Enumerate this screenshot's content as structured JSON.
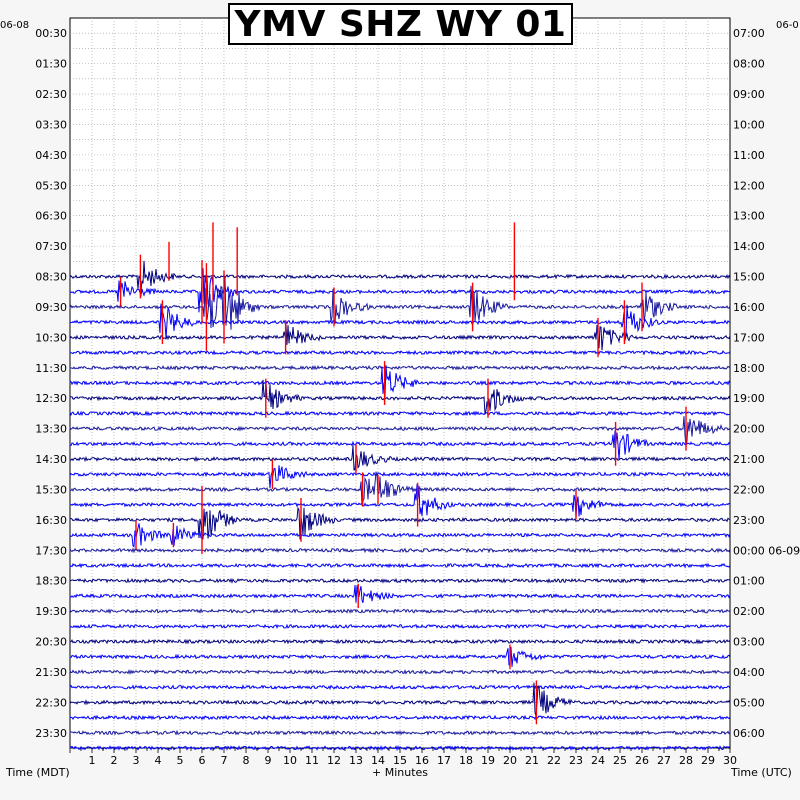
{
  "title": "YMV SHZ WY 01",
  "date_left": "06-08",
  "date_right": "06-0",
  "x_axis_label": "+ Minutes",
  "left_axis_label": "Time (MDT)",
  "right_axis_label": "Time (UTC)",
  "colors": {
    "trace_a": "#000080",
    "trace_b": "#0000ff",
    "trace_c": "#1a1aa0",
    "event": "#ff0000",
    "grid": "#9a9a9a"
  },
  "chart_data": {
    "type": "line",
    "title": "YMV SHZ WY 01",
    "xlabel": "+ Minutes",
    "xlim": [
      0,
      30
    ],
    "x_ticks": [
      "1",
      "2",
      "3",
      "4",
      "5",
      "6",
      "7",
      "8",
      "9",
      "10",
      "11",
      "12",
      "13",
      "14",
      "15",
      "16",
      "17",
      "18",
      "19",
      "20",
      "21",
      "22",
      "23",
      "24",
      "25",
      "26",
      "27",
      "28",
      "29",
      "30"
    ],
    "left_labels": [
      "00:30",
      "01:30",
      "02:30",
      "03:30",
      "04:30",
      "05:30",
      "06:30",
      "07:30",
      "08:30",
      "09:30",
      "10:30",
      "11:30",
      "12:30",
      "13:30",
      "14:30",
      "15:30",
      "16:30",
      "17:30",
      "18:30",
      "19:30",
      "20:30",
      "21:30",
      "22:30",
      "23:30"
    ],
    "right_labels": [
      "07:00",
      "08:00",
      "09:00",
      "10:00",
      "11:00",
      "12:00",
      "13:00",
      "14:00",
      "15:00",
      "16:00",
      "17:00",
      "18:00",
      "19:00",
      "20:00",
      "21:00",
      "22:00",
      "23:00",
      "00:00 06-09",
      "01:00",
      "02:00",
      "03:00",
      "04:00",
      "05:00",
      "06:00"
    ],
    "rows_per_hour": 2,
    "trace_start_hour": 8.5,
    "events": [
      {
        "hour": 8.5,
        "minute": 4.5,
        "amplitude": 0.8
      },
      {
        "hour": 8.5,
        "minute": 6.5,
        "amplitude": 1.6
      },
      {
        "hour": 8.5,
        "minute": 7.6,
        "amplitude": 1.4
      },
      {
        "hour": 8.5,
        "minute": 20.2,
        "amplitude": 1.6
      },
      {
        "hour": 9.0,
        "minute": 3.2,
        "amplitude": 0.9
      },
      {
        "hour": 9.5,
        "minute": 2.3,
        "amplitude": 0.6
      },
      {
        "hour": 9.5,
        "minute": 6.0,
        "amplitude": 1.3
      },
      {
        "hour": 10.0,
        "minute": 6.2,
        "amplitude": 1.8
      },
      {
        "hour": 10.0,
        "minute": 7.0,
        "amplitude": 1.5
      },
      {
        "hour": 10.0,
        "minute": 12.0,
        "amplitude": 0.8
      },
      {
        "hour": 10.0,
        "minute": 18.3,
        "amplitude": 1.0
      },
      {
        "hour": 10.0,
        "minute": 26.0,
        "amplitude": 1.0
      },
      {
        "hour": 10.5,
        "minute": 4.2,
        "amplitude": 0.9
      },
      {
        "hour": 10.5,
        "minute": 25.2,
        "amplitude": 0.9
      },
      {
        "hour": 11.0,
        "minute": 9.8,
        "amplitude": 0.7
      },
      {
        "hour": 11.0,
        "minute": 24.0,
        "amplitude": 0.8
      },
      {
        "hour": 12.5,
        "minute": 14.3,
        "amplitude": 0.9
      },
      {
        "hour": 13.0,
        "minute": 8.9,
        "amplitude": 0.8
      },
      {
        "hour": 13.0,
        "minute": 19.0,
        "amplitude": 0.8
      },
      {
        "hour": 14.0,
        "minute": 28.0,
        "amplitude": 0.9
      },
      {
        "hour": 14.5,
        "minute": 24.8,
        "amplitude": 0.9
      },
      {
        "hour": 15.0,
        "minute": 13.0,
        "amplitude": 0.6
      },
      {
        "hour": 15.5,
        "minute": 9.2,
        "amplitude": 0.6
      },
      {
        "hour": 16.0,
        "minute": 13.3,
        "amplitude": 0.7
      },
      {
        "hour": 16.0,
        "minute": 14.0,
        "amplitude": 0.6
      },
      {
        "hour": 16.5,
        "minute": 15.8,
        "amplitude": 0.9
      },
      {
        "hour": 16.5,
        "minute": 23.0,
        "amplitude": 0.6
      },
      {
        "hour": 17.0,
        "minute": 6.0,
        "amplitude": 1.4
      },
      {
        "hour": 17.0,
        "minute": 10.5,
        "amplitude": 0.9
      },
      {
        "hour": 17.5,
        "minute": 3.0,
        "amplitude": 0.6
      },
      {
        "hour": 17.5,
        "minute": 4.7,
        "amplitude": 0.5
      },
      {
        "hour": 19.5,
        "minute": 13.1,
        "amplitude": 0.5
      },
      {
        "hour": 21.5,
        "minute": 20.0,
        "amplitude": 0.5
      },
      {
        "hour": 23.0,
        "minute": 21.2,
        "amplitude": 0.9
      }
    ]
  }
}
